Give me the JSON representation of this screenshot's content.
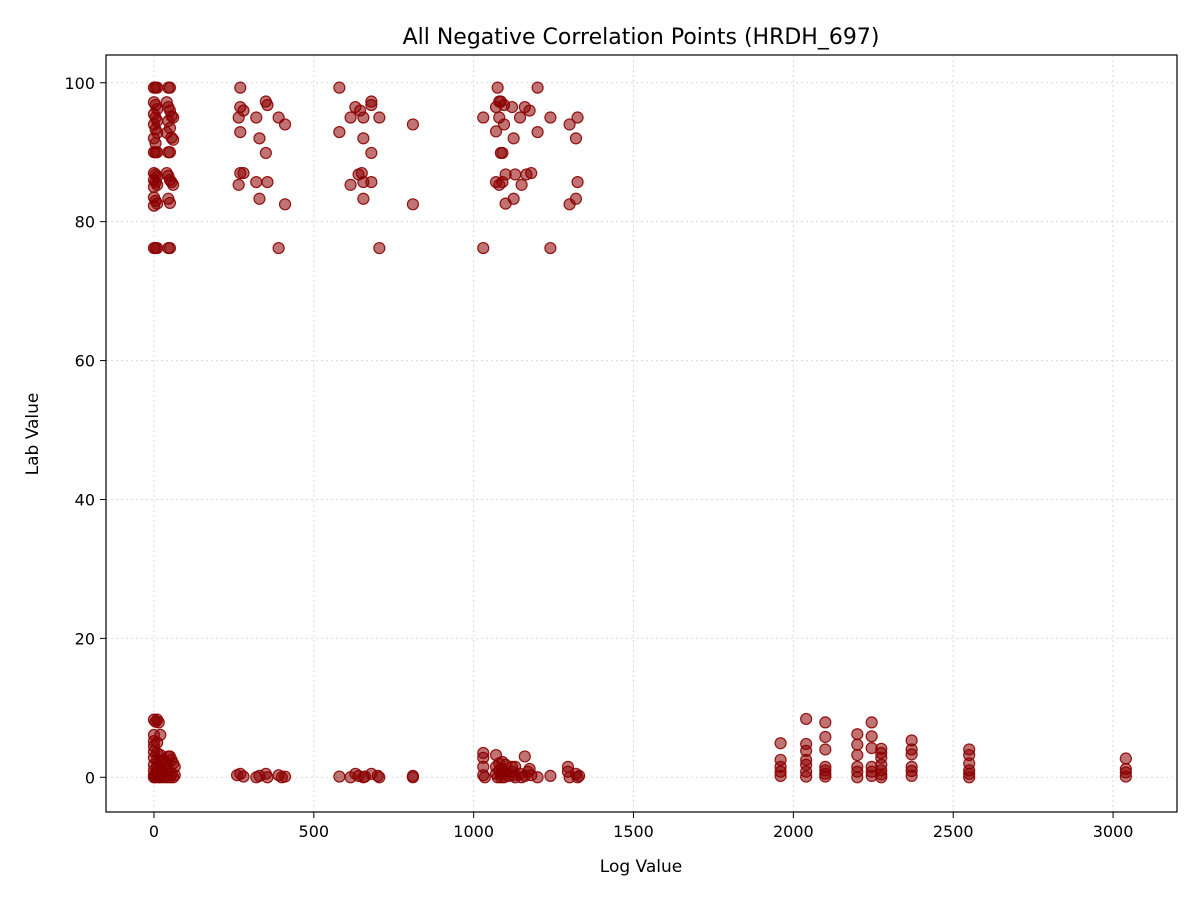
{
  "chart_data": {
    "type": "scatter",
    "title": "All Negative Correlation Points (HRDH_697)",
    "xlabel": "Log Value",
    "ylabel": "Lab Value",
    "xlim": [
      -150,
      3200
    ],
    "ylim": [
      -5,
      104
    ],
    "xticks": [
      0,
      500,
      1000,
      1500,
      2000,
      2500,
      3000
    ],
    "yticks": [
      0,
      20,
      40,
      60,
      80,
      100
    ],
    "grid": true,
    "marker_color": "#8b0000",
    "marker_alpha": 0.55,
    "series": [
      {
        "points": [
          [
            0,
            99.3
          ],
          [
            5,
            99.3
          ],
          [
            10,
            99.3
          ],
          [
            45,
            99.3
          ],
          [
            50,
            99.3
          ],
          [
            0,
            97.2
          ],
          [
            5,
            96.8
          ],
          [
            10,
            96.2
          ],
          [
            0,
            95.5
          ],
          [
            5,
            95.0
          ],
          [
            10,
            94.5
          ],
          [
            0,
            94.0
          ],
          [
            5,
            93.3
          ],
          [
            10,
            92.8
          ],
          [
            0,
            92.0
          ],
          [
            5,
            91.3
          ],
          [
            0,
            90.0
          ],
          [
            5,
            90.0
          ],
          [
            10,
            90.0
          ],
          [
            45,
            90.0
          ],
          [
            50,
            90.0
          ],
          [
            0,
            87.0
          ],
          [
            5,
            86.8
          ],
          [
            10,
            86.5
          ],
          [
            0,
            86.0
          ],
          [
            5,
            85.7
          ],
          [
            10,
            85.3
          ],
          [
            0,
            85.0
          ],
          [
            0,
            83.5
          ],
          [
            5,
            83.0
          ],
          [
            10,
            82.6
          ],
          [
            0,
            82.3
          ],
          [
            0,
            76.2
          ],
          [
            5,
            76.2
          ],
          [
            10,
            76.2
          ],
          [
            45,
            76.2
          ],
          [
            50,
            76.2
          ],
          [
            40,
            97.2
          ],
          [
            45,
            96.5
          ],
          [
            50,
            96.0
          ],
          [
            55,
            95.2
          ],
          [
            60,
            95.0
          ],
          [
            45,
            94.5
          ],
          [
            50,
            93.5
          ],
          [
            40,
            92.8
          ],
          [
            55,
            92.1
          ],
          [
            60,
            91.8
          ],
          [
            40,
            87.0
          ],
          [
            45,
            86.6
          ],
          [
            50,
            86.0
          ],
          [
            55,
            85.7
          ],
          [
            60,
            85.3
          ],
          [
            45,
            83.3
          ],
          [
            50,
            82.7
          ],
          [
            270,
            99.3
          ],
          [
            270,
            96.5
          ],
          [
            280,
            96.0
          ],
          [
            265,
            95.0
          ],
          [
            270,
            92.9
          ],
          [
            270,
            87.0
          ],
          [
            280,
            87.0
          ],
          [
            265,
            85.3
          ],
          [
            320,
            95.0
          ],
          [
            330,
            92.0
          ],
          [
            320,
            85.7
          ],
          [
            330,
            83.3
          ],
          [
            350,
            97.3
          ],
          [
            355,
            96.8
          ],
          [
            350,
            89.9
          ],
          [
            355,
            85.7
          ],
          [
            390,
            95.0
          ],
          [
            410,
            94.0
          ],
          [
            410,
            82.5
          ],
          [
            390,
            76.2
          ],
          [
            580,
            99.3
          ],
          [
            580,
            92.9
          ],
          [
            615,
            95.0
          ],
          [
            615,
            85.3
          ],
          [
            630,
            96.5
          ],
          [
            640,
            86.8
          ],
          [
            650,
            87.0
          ],
          [
            645,
            96.0
          ],
          [
            655,
            95.0
          ],
          [
            655,
            92.0
          ],
          [
            655,
            85.7
          ],
          [
            655,
            83.3
          ],
          [
            680,
            97.3
          ],
          [
            680,
            96.8
          ],
          [
            680,
            89.9
          ],
          [
            680,
            85.7
          ],
          [
            705,
            95.0
          ],
          [
            705,
            76.2
          ],
          [
            810,
            94.0
          ],
          [
            810,
            82.5
          ],
          [
            1030,
            95.0
          ],
          [
            1030,
            76.2
          ],
          [
            1070,
            96.5
          ],
          [
            1070,
            93.0
          ],
          [
            1070,
            85.7
          ],
          [
            1075,
            99.3
          ],
          [
            1080,
            97.3
          ],
          [
            1080,
            95.0
          ],
          [
            1080,
            85.3
          ],
          [
            1085,
            97.3
          ],
          [
            1085,
            89.9
          ],
          [
            1090,
            89.9
          ],
          [
            1090,
            85.7
          ],
          [
            1095,
            94.0
          ],
          [
            1095,
            96.8
          ],
          [
            1100,
            86.8
          ],
          [
            1100,
            82.6
          ],
          [
            1120,
            96.5
          ],
          [
            1125,
            92.0
          ],
          [
            1125,
            83.3
          ],
          [
            1130,
            86.8
          ],
          [
            1145,
            95.0
          ],
          [
            1150,
            85.3
          ],
          [
            1160,
            96.5
          ],
          [
            1165,
            86.8
          ],
          [
            1175,
            96.0
          ],
          [
            1180,
            87.0
          ],
          [
            1200,
            99.3
          ],
          [
            1200,
            92.9
          ],
          [
            1240,
            95.0
          ],
          [
            1240,
            76.2
          ],
          [
            1300,
            94.0
          ],
          [
            1300,
            82.5
          ],
          [
            1320,
            92.0
          ],
          [
            1320,
            83.3
          ],
          [
            1325,
            95.0
          ],
          [
            1325,
            85.7
          ],
          [
            0,
            8.3
          ],
          [
            5,
            8.0
          ],
          [
            10,
            8.3
          ],
          [
            15,
            7.9
          ],
          [
            0,
            6.1
          ],
          [
            20,
            6.1
          ],
          [
            0,
            5.2
          ],
          [
            10,
            5.0
          ],
          [
            0,
            4.5
          ],
          [
            0,
            3.7
          ],
          [
            10,
            3.5
          ],
          [
            20,
            3.2
          ],
          [
            0,
            2.8
          ],
          [
            10,
            2.5
          ],
          [
            20,
            2.2
          ],
          [
            0,
            1.8
          ],
          [
            10,
            1.6
          ],
          [
            20,
            1.3
          ],
          [
            0,
            1.0
          ],
          [
            10,
            0.8
          ],
          [
            20,
            0.5
          ],
          [
            0,
            0.3
          ],
          [
            10,
            0.1
          ],
          [
            20,
            0
          ],
          [
            30,
            0
          ],
          [
            40,
            0
          ],
          [
            50,
            0
          ],
          [
            60,
            0
          ],
          [
            0,
            0
          ],
          [
            5,
            0
          ],
          [
            15,
            0
          ],
          [
            25,
            1.0
          ],
          [
            35,
            1.5
          ],
          [
            40,
            2.0
          ],
          [
            45,
            3.0
          ],
          [
            50,
            3.0
          ],
          [
            55,
            2.5
          ],
          [
            60,
            2.0
          ],
          [
            65,
            1.5
          ],
          [
            45,
            1.0
          ],
          [
            55,
            0.5
          ],
          [
            65,
            0.3
          ],
          [
            30,
            2.5
          ],
          [
            260,
            0.3
          ],
          [
            270,
            0.5
          ],
          [
            280,
            0.1
          ],
          [
            320,
            0
          ],
          [
            330,
            0.2
          ],
          [
            350,
            0.5
          ],
          [
            355,
            0
          ],
          [
            390,
            0.3
          ],
          [
            400,
            0
          ],
          [
            410,
            0.1
          ],
          [
            580,
            0.1
          ],
          [
            615,
            0
          ],
          [
            630,
            0.5
          ],
          [
            640,
            0.2
          ],
          [
            655,
            0
          ],
          [
            660,
            0.1
          ],
          [
            680,
            0.5
          ],
          [
            700,
            0.2
          ],
          [
            705,
            0
          ],
          [
            810,
            0
          ],
          [
            810,
            0.2
          ],
          [
            1030,
            3.5
          ],
          [
            1030,
            2.8
          ],
          [
            1030,
            1.5
          ],
          [
            1030,
            0.3
          ],
          [
            1035,
            0
          ],
          [
            1070,
            3.2
          ],
          [
            1070,
            1.5
          ],
          [
            1070,
            0.5
          ],
          [
            1075,
            0
          ],
          [
            1080,
            2.0
          ],
          [
            1080,
            1.0
          ],
          [
            1085,
            0.5
          ],
          [
            1085,
            0
          ],
          [
            1090,
            2.2
          ],
          [
            1090,
            1.2
          ],
          [
            1095,
            0.8
          ],
          [
            1095,
            0
          ],
          [
            1100,
            1.8
          ],
          [
            1100,
            0.5
          ],
          [
            1110,
            0.2
          ],
          [
            1120,
            1.5
          ],
          [
            1120,
            0.8
          ],
          [
            1125,
            0.3
          ],
          [
            1130,
            0
          ],
          [
            1130,
            1.5
          ],
          [
            1145,
            0.5
          ],
          [
            1150,
            0
          ],
          [
            1160,
            3.0
          ],
          [
            1160,
            0.2
          ],
          [
            1170,
            0.8
          ],
          [
            1175,
            1.2
          ],
          [
            1180,
            0.3
          ],
          [
            1200,
            0
          ],
          [
            1240,
            0.2
          ],
          [
            1295,
            1.5
          ],
          [
            1295,
            0.8
          ],
          [
            1300,
            0
          ],
          [
            1320,
            0.5
          ],
          [
            1325,
            0
          ],
          [
            1330,
            0.2
          ],
          [
            1960,
            4.9
          ],
          [
            1960,
            2.5
          ],
          [
            1960,
            1.5
          ],
          [
            1960,
            0.8
          ],
          [
            1960,
            0.2
          ],
          [
            2040,
            8.4
          ],
          [
            2040,
            4.8
          ],
          [
            2040,
            3.8
          ],
          [
            2040,
            2.5
          ],
          [
            2040,
            1.8
          ],
          [
            2040,
            0.8
          ],
          [
            2040,
            0.1
          ],
          [
            2100,
            7.9
          ],
          [
            2100,
            5.8
          ],
          [
            2100,
            4.0
          ],
          [
            2100,
            1.5
          ],
          [
            2100,
            1.0
          ],
          [
            2100,
            0.5
          ],
          [
            2100,
            0.1
          ],
          [
            2200,
            6.2
          ],
          [
            2200,
            4.7
          ],
          [
            2200,
            3.2
          ],
          [
            2200,
            1.5
          ],
          [
            2200,
            0.8
          ],
          [
            2200,
            0
          ],
          [
            2245,
            7.9
          ],
          [
            2245,
            5.9
          ],
          [
            2245,
            4.2
          ],
          [
            2245,
            1.5
          ],
          [
            2245,
            0.8
          ],
          [
            2245,
            0.2
          ],
          [
            2275,
            4.1
          ],
          [
            2275,
            3.5
          ],
          [
            2275,
            2.8
          ],
          [
            2275,
            1.8
          ],
          [
            2275,
            1.0
          ],
          [
            2275,
            0.4
          ],
          [
            2275,
            0
          ],
          [
            2370,
            5.3
          ],
          [
            2370,
            4.0
          ],
          [
            2370,
            3.3
          ],
          [
            2370,
            1.5
          ],
          [
            2370,
            0.9
          ],
          [
            2370,
            0.2
          ],
          [
            2550,
            4.0
          ],
          [
            2550,
            3.2
          ],
          [
            2550,
            2.0
          ],
          [
            2550,
            1.0
          ],
          [
            2550,
            0.5
          ],
          [
            2550,
            0
          ],
          [
            3040,
            2.7
          ],
          [
            3040,
            1.2
          ],
          [
            3040,
            0.7
          ],
          [
            3040,
            0.1
          ]
        ]
      }
    ]
  }
}
